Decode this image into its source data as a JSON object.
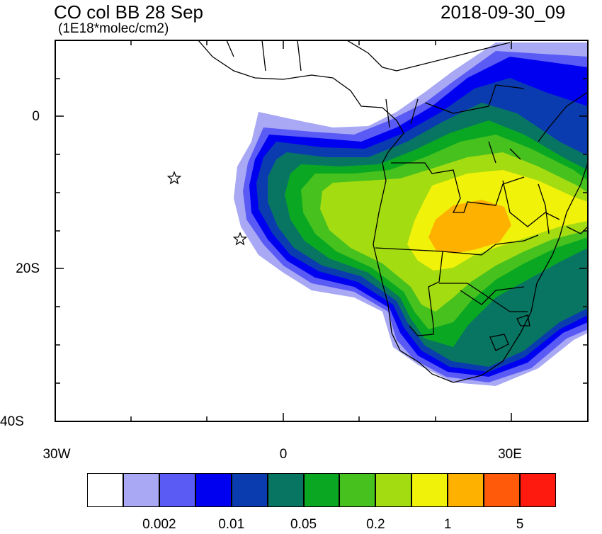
{
  "title": "CO col BB 28 Sep",
  "units": "(1E18*molec/cm2)",
  "timestamp": "2018-09-30_09",
  "axes": {
    "y_ticks": [
      "0",
      "20S",
      "40S"
    ],
    "x_ticks": [
      "30W",
      "0",
      "30E"
    ]
  },
  "colorbar": {
    "colors": [
      "#ffffff",
      "#a8a8f5",
      "#5a5af5",
      "#0000f0",
      "#0a3caf",
      "#087562",
      "#0aa822",
      "#46c11e",
      "#a4dc12",
      "#f0f20a",
      "#ffb100",
      "#ff5a0a",
      "#ff1a10"
    ],
    "labels": [
      "0.002",
      "0.01",
      "0.05",
      "0.2",
      "1",
      "5"
    ]
  },
  "markers": [
    {
      "name": "star-marker-1",
      "lon": -14.4,
      "lat": -7.9
    },
    {
      "name": "star-marker-2",
      "lon": -5.7,
      "lat": -15.9
    }
  ],
  "map_extent": {
    "lon": [
      -30,
      40
    ],
    "lat": [
      -40,
      10
    ]
  }
}
